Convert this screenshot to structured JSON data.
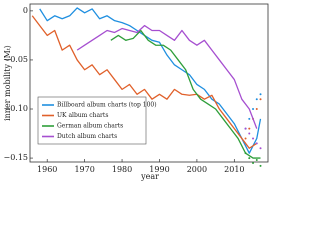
{
  "chart_data": {
    "type": "line",
    "x_label": "year",
    "y_label": "inner mobility ⟨Mₜ⟩",
    "xlim": [
      1955.4,
      2019
    ],
    "ylim": [
      -0.154,
      0.007
    ],
    "xticks": [
      1960,
      1970,
      1980,
      1990,
      2000,
      2010
    ],
    "yticks": [
      0,
      {
        "value": -0.05,
        "label": "−0.05"
      },
      {
        "value": -0.1,
        "label": "−0.10"
      },
      {
        "value": -0.15,
        "label": "−0.15"
      }
    ],
    "legend": "lower-left",
    "series": [
      {
        "name": "Billboard album charts (top 100)",
        "color": "#1f8fe0",
        "x": [
          1958,
          1960,
          1962,
          1964,
          1966,
          1968,
          1970,
          1972,
          1974,
          1976,
          1978,
          1980,
          1982,
          1984,
          1986,
          1988,
          1990,
          1992,
          1994,
          1996,
          1998,
          2000,
          2002,
          2004,
          2006,
          2008,
          2010,
          2012,
          2014,
          2016,
          2017
        ],
        "values": [
          0.002,
          -0.01,
          -0.005,
          -0.008,
          -0.005,
          0.003,
          -0.002,
          0.002,
          -0.008,
          -0.005,
          -0.01,
          -0.012,
          -0.015,
          -0.02,
          -0.025,
          -0.03,
          -0.032,
          -0.045,
          -0.055,
          -0.06,
          -0.065,
          -0.075,
          -0.08,
          -0.09,
          -0.095,
          -0.105,
          -0.115,
          -0.13,
          -0.145,
          -0.13,
          -0.11
        ],
        "dotted_x": [
          2013,
          2014,
          2015,
          2016,
          2017
        ],
        "dotted_values": [
          -0.12,
          -0.11,
          -0.1,
          -0.09,
          -0.085
        ]
      },
      {
        "name": "UK album charts",
        "color": "#e0602a",
        "x": [
          1956,
          1958,
          1960,
          1962,
          1964,
          1966,
          1968,
          1970,
          1972,
          1974,
          1976,
          1978,
          1980,
          1982,
          1984,
          1986,
          1988,
          1990,
          1992,
          1994,
          1996,
          1998,
          2000,
          2002,
          2004,
          2006,
          2008,
          2010,
          2012,
          2014,
          2016
        ],
        "values": [
          -0.005,
          -0.015,
          -0.025,
          -0.02,
          -0.04,
          -0.035,
          -0.05,
          -0.06,
          -0.055,
          -0.065,
          -0.06,
          -0.07,
          -0.08,
          -0.075,
          -0.085,
          -0.08,
          -0.09,
          -0.085,
          -0.09,
          -0.08,
          -0.085,
          -0.086,
          -0.085,
          -0.09,
          -0.086,
          -0.1,
          -0.11,
          -0.12,
          -0.13,
          -0.14,
          -0.135
        ],
        "dotted_x": [
          2013,
          2014,
          2015,
          2016,
          2017
        ],
        "dotted_values": [
          -0.13,
          -0.12,
          -0.11,
          -0.1,
          -0.09
        ]
      },
      {
        "name": "German album charts",
        "color": "#2e9e3a",
        "x": [
          1977,
          1979,
          1981,
          1983,
          1985,
          1987,
          1989,
          1991,
          1993,
          1995,
          1997,
          1999,
          2001,
          2003,
          2005,
          2007,
          2009,
          2011,
          2013,
          2015,
          2017
        ],
        "values": [
          -0.03,
          -0.025,
          -0.03,
          -0.028,
          -0.02,
          -0.03,
          -0.035,
          -0.035,
          -0.04,
          -0.05,
          -0.06,
          -0.08,
          -0.09,
          -0.095,
          -0.1,
          -0.11,
          -0.12,
          -0.13,
          -0.145,
          -0.15,
          -0.15
        ],
        "dotted_x": [
          2013,
          2014,
          2015,
          2016,
          2017
        ],
        "dotted_values": [
          -0.145,
          -0.15,
          -0.155,
          -0.152,
          -0.158
        ]
      },
      {
        "name": "Dutch album charts",
        "color": "#a64fd0",
        "x": [
          1968,
          1970,
          1972,
          1974,
          1976,
          1978,
          1980,
          1982,
          1984,
          1986,
          1988,
          1990,
          1992,
          1994,
          1996,
          1998,
          2000,
          2002,
          2004,
          2006,
          2008,
          2010,
          2012,
          2014,
          2016
        ],
        "values": [
          -0.04,
          -0.035,
          -0.03,
          -0.025,
          -0.02,
          -0.022,
          -0.018,
          -0.02,
          -0.022,
          -0.015,
          -0.02,
          -0.02,
          -0.025,
          -0.03,
          -0.02,
          -0.03,
          -0.035,
          -0.03,
          -0.04,
          -0.05,
          -0.06,
          -0.07,
          -0.09,
          -0.1,
          -0.12
        ],
        "dotted_x": [
          2013,
          2014,
          2015,
          2016,
          2017
        ],
        "dotted_values": [
          -0.12,
          -0.125,
          -0.13,
          -0.135,
          -0.14
        ]
      }
    ]
  }
}
